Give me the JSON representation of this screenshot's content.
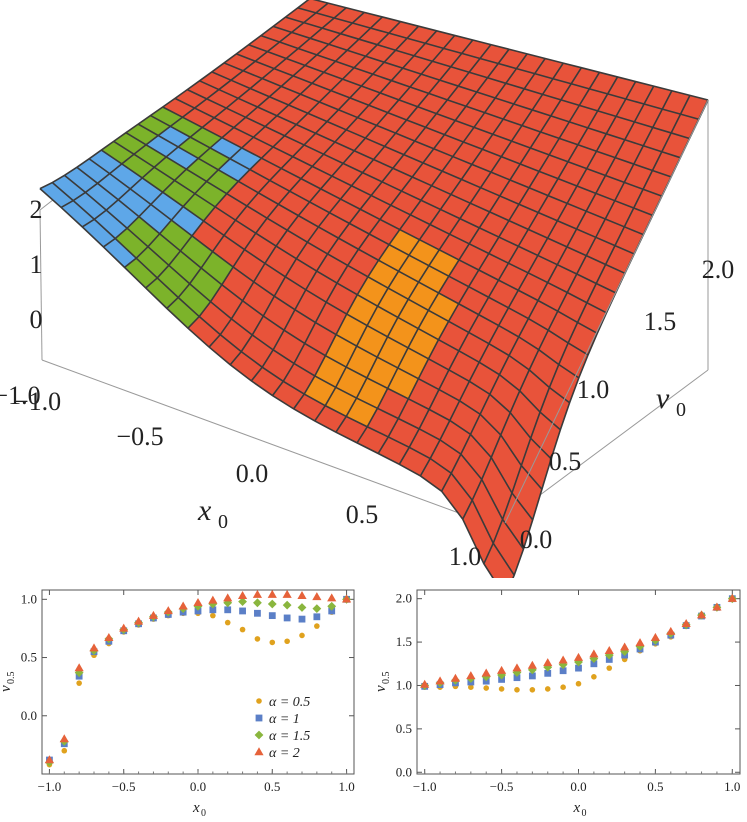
{
  "chart_data": [
    {
      "type": "surface",
      "x_axis": {
        "label": "x",
        "label_sub": "0",
        "ticks": [
          "−1.0",
          "−0.5",
          "0.0",
          "0.5",
          "1.0"
        ],
        "range": [
          -1,
          1
        ]
      },
      "y_axis": {
        "label": "v",
        "label_sub": "0",
        "ticks": [
          "0.0",
          "0.5",
          "1.0",
          "1.5",
          "2.0"
        ],
        "range": [
          0,
          2
        ]
      },
      "z_axis": {
        "ticks": [
          "−1.0",
          "0",
          "1",
          "2"
        ],
        "range": [
          -1,
          2
        ]
      },
      "colors": {
        "red": "#e8533a",
        "orange": "#f3931b",
        "green": "#7cb32a",
        "blue": "#5ea7e8",
        "mesh": "#3b3b3b",
        "box": "#9a9a9a"
      }
    },
    {
      "type": "scatter",
      "xlabel": "x",
      "xlabel_sub": "0",
      "ylabel": "v",
      "ylabel_sub": "0.5",
      "xlim": [
        -1.05,
        1.05
      ],
      "ylim": [
        -0.5,
        1.08
      ],
      "xticks": [
        "−1.0",
        "−0.5",
        "0.0",
        "0.5",
        "1.0"
      ],
      "xtick_values": [
        -1.0,
        -0.5,
        0.0,
        0.5,
        1.0
      ],
      "yticks": [
        "0.0",
        "0.5",
        "1.0"
      ],
      "ytick_values": [
        0.0,
        0.5,
        1.0
      ],
      "x": [
        -1.0,
        -0.9,
        -0.8,
        -0.7,
        -0.6,
        -0.5,
        -0.4,
        -0.3,
        -0.2,
        -0.1,
        0.0,
        0.1,
        0.2,
        0.3,
        0.4,
        0.5,
        0.6,
        0.7,
        0.8,
        0.9,
        1.0
      ],
      "legend": {
        "placement": "bottom-right",
        "entries": [
          "α = 0.5",
          "α = 1",
          "α = 1.5",
          "α = 2"
        ]
      },
      "series": [
        {
          "name": "α = 0.5",
          "marker": "circle",
          "color": "#e0a21e",
          "values": [
            -0.42,
            -0.3,
            0.28,
            0.52,
            0.62,
            0.72,
            0.78,
            0.83,
            0.86,
            0.88,
            0.88,
            0.86,
            0.8,
            0.74,
            0.66,
            0.63,
            0.64,
            0.69,
            0.77,
            0.89,
            1.0
          ]
        },
        {
          "name": "α = 1",
          "marker": "square",
          "color": "#5b7fc7",
          "values": [
            -0.38,
            -0.24,
            0.34,
            0.55,
            0.64,
            0.73,
            0.79,
            0.84,
            0.87,
            0.89,
            0.9,
            0.91,
            0.91,
            0.9,
            0.88,
            0.86,
            0.84,
            0.83,
            0.85,
            0.9,
            1.0
          ]
        },
        {
          "name": "α = 1.5",
          "marker": "diamond",
          "color": "#8ab63e",
          "values": [
            -0.4,
            -0.22,
            0.37,
            0.56,
            0.66,
            0.74,
            0.8,
            0.85,
            0.89,
            0.92,
            0.94,
            0.96,
            0.97,
            0.98,
            0.97,
            0.96,
            0.95,
            0.93,
            0.92,
            0.94,
            1.0
          ]
        },
        {
          "name": "α = 2",
          "marker": "triangle",
          "color": "#e6623a",
          "values": [
            -0.38,
            -0.2,
            0.41,
            0.58,
            0.67,
            0.75,
            0.81,
            0.86,
            0.9,
            0.94,
            0.97,
            0.99,
            1.01,
            1.03,
            1.04,
            1.04,
            1.04,
            1.03,
            1.02,
            1.01,
            1.0
          ]
        }
      ]
    },
    {
      "type": "scatter",
      "xlabel": "x",
      "xlabel_sub": "0",
      "ylabel": "v",
      "ylabel_sub": "0.5",
      "xlim": [
        -1.05,
        1.05
      ],
      "ylim": [
        -0.02,
        2.1
      ],
      "xticks": [
        "−1.0",
        "−0.5",
        "0.0",
        "0.5",
        "1.0"
      ],
      "xtick_values": [
        -1.0,
        -0.5,
        0.0,
        0.5,
        1.0
      ],
      "yticks": [
        "0.0",
        "0.5",
        "1.0",
        "1.5",
        "2.0"
      ],
      "ytick_values": [
        0.0,
        0.5,
        1.0,
        1.5,
        2.0
      ],
      "x": [
        -1.0,
        -0.9,
        -0.8,
        -0.7,
        -0.6,
        -0.5,
        -0.4,
        -0.3,
        -0.2,
        -0.1,
        0.0,
        0.1,
        0.2,
        0.3,
        0.4,
        0.5,
        0.6,
        0.7,
        0.8,
        0.9,
        1.0
      ],
      "series": [
        {
          "name": "α = 0.5",
          "marker": "circle",
          "color": "#e0a21e",
          "values": [
            0.98,
            0.98,
            0.99,
            0.98,
            0.97,
            0.96,
            0.95,
            0.95,
            0.96,
            0.98,
            1.02,
            1.1,
            1.2,
            1.3,
            1.4,
            1.48,
            1.56,
            1.68,
            1.8,
            1.9,
            2.0
          ]
        },
        {
          "name": "α = 1",
          "marker": "square",
          "color": "#5b7fc7",
          "values": [
            0.99,
            1.01,
            1.03,
            1.04,
            1.05,
            1.07,
            1.09,
            1.11,
            1.14,
            1.17,
            1.2,
            1.25,
            1.3,
            1.35,
            1.42,
            1.5,
            1.58,
            1.69,
            1.8,
            1.9,
            2.0
          ]
        },
        {
          "name": "α = 1.5",
          "marker": "diamond",
          "color": "#8ab63e",
          "values": [
            1.0,
            1.03,
            1.06,
            1.08,
            1.1,
            1.12,
            1.15,
            1.18,
            1.21,
            1.24,
            1.27,
            1.31,
            1.35,
            1.39,
            1.45,
            1.52,
            1.6,
            1.7,
            1.81,
            1.9,
            2.0
          ]
        },
        {
          "name": "α = 2",
          "marker": "triangle",
          "color": "#e6623a",
          "values": [
            1.01,
            1.05,
            1.08,
            1.11,
            1.14,
            1.17,
            1.2,
            1.23,
            1.26,
            1.29,
            1.32,
            1.36,
            1.4,
            1.44,
            1.49,
            1.55,
            1.62,
            1.71,
            1.81,
            1.9,
            2.0
          ]
        }
      ]
    }
  ]
}
